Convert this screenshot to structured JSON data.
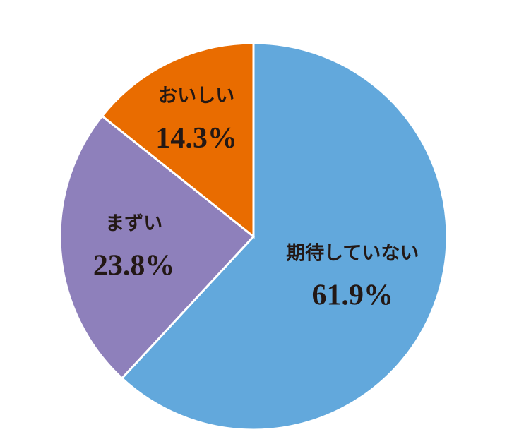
{
  "chart_data": {
    "type": "pie",
    "categories": [
      "期待していない",
      "まずい",
      "おいしい"
    ],
    "values": [
      61.9,
      23.8,
      14.3
    ],
    "value_labels": [
      "61.9%",
      "23.8%",
      "14.3%"
    ],
    "colors": [
      "#62a8dc",
      "#8e80bb",
      "#e96c00"
    ]
  }
}
